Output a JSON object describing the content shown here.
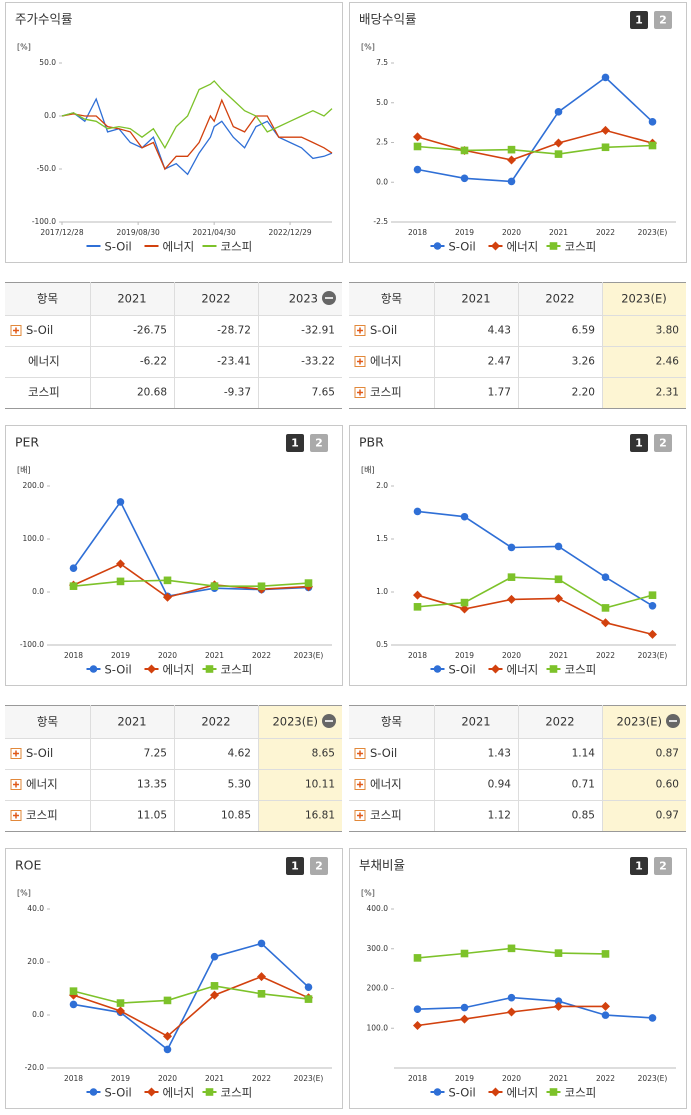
{
  "chart_data": [
    {
      "type": "line",
      "title": "주가수익률",
      "unit_label": "[%]",
      "x": [
        "2017/12/28",
        "2018/03/30",
        "2018/06/29",
        "2018/09/28",
        "2018/12/28",
        "2019/03/29",
        "2019/06/28",
        "2019/09/30",
        "2019/12/30",
        "2020/03/31",
        "2020/06/30",
        "2020/09/29",
        "2020/12/30",
        "2021/03/31",
        "2021/04/30",
        "2021/06/30",
        "2021/09/30",
        "2021/12/30",
        "2022/03/31",
        "2022/06/30",
        "2022/09/30",
        "2022/12/29",
        "2023/03/31",
        "2023/06/30",
        "2023/09/27",
        "2023/11/30"
      ],
      "xlim": [
        "2017/12/28",
        "2023/11/30"
      ],
      "xticks": [
        "2017/12/28",
        "2019/08/30",
        "2021/04/30",
        "2022/12/29"
      ],
      "ylim": [
        -100,
        50
      ],
      "yticks": [
        {
          "value": 50,
          "label": "50.0"
        },
        {
          "value": 0,
          "label": "0.0"
        },
        {
          "value": -50,
          "label": "-50.0"
        },
        {
          "value": -100,
          "label": "-100.0"
        }
      ],
      "series": [
        {
          "name": "S-Oil",
          "color": "#2f6fd6",
          "values": [
            0,
            3,
            -5,
            16,
            -15,
            -12,
            -25,
            -30,
            -20,
            -50,
            -45,
            -55,
            -35,
            -20,
            -10,
            -5,
            -20,
            -30,
            -10,
            -5,
            -20,
            -25,
            -30,
            -40,
            -38,
            -35
          ]
        },
        {
          "name": "에너지",
          "color": "#d2410e",
          "values": [
            0,
            2,
            0,
            0,
            -10,
            -12,
            -15,
            -30,
            -25,
            -50,
            -38,
            -38,
            -25,
            0,
            -5,
            15,
            -10,
            -15,
            0,
            0,
            -20,
            -20,
            -20,
            -25,
            -30,
            -35
          ]
        },
        {
          "name": "코스피",
          "color": "#7dc22a",
          "values": [
            0,
            3,
            -3,
            -5,
            -12,
            -10,
            -12,
            -20,
            -12,
            -30,
            -10,
            0,
            25,
            30,
            33,
            25,
            15,
            5,
            0,
            -15,
            -10,
            -5,
            0,
            5,
            0,
            7
          ]
        }
      ]
    },
    {
      "type": "line",
      "title": "배당수익률",
      "pages": [
        "1",
        "2"
      ],
      "unit_label": "[%]",
      "categories": [
        "2018",
        "2019",
        "2020",
        "2021",
        "2022",
        "2023(E)"
      ],
      "ylim": [
        -2.5,
        7.5
      ],
      "yticks": [
        {
          "value": 7.5,
          "label": "7.5"
        },
        {
          "value": 5,
          "label": "5.0"
        },
        {
          "value": 2.5,
          "label": "2.5"
        },
        {
          "value": 0,
          "label": "0.0"
        },
        {
          "value": -2.5,
          "label": "-2.5"
        }
      ],
      "series": [
        {
          "name": "S-Oil",
          "color": "#2f6fd6",
          "values": [
            0.8,
            0.25,
            0.05,
            4.43,
            6.59,
            3.8
          ]
        },
        {
          "name": "에너지",
          "color": "#d2410e",
          "values": [
            2.85,
            2.0,
            1.4,
            2.47,
            3.26,
            2.46
          ]
        },
        {
          "name": "코스피",
          "color": "#7dc22a",
          "values": [
            2.25,
            2.0,
            2.05,
            1.77,
            2.2,
            2.31
          ]
        }
      ]
    },
    {
      "type": "line",
      "title": "PER",
      "pages": [
        "1",
        "2"
      ],
      "unit_label": "[배]",
      "categories": [
        "2018",
        "2019",
        "2020",
        "2021",
        "2022",
        "2023(E)"
      ],
      "ylim": [
        -100,
        200
      ],
      "yticks": [
        {
          "value": 200,
          "label": "200.0"
        },
        {
          "value": 100,
          "label": "100.0"
        },
        {
          "value": 0,
          "label": "0.0"
        },
        {
          "value": -100,
          "label": "-100.0"
        }
      ],
      "series": [
        {
          "name": "S-Oil",
          "color": "#2f6fd6",
          "values": [
            45,
            170,
            -8,
            7.25,
            4.62,
            8.65
          ]
        },
        {
          "name": "에너지",
          "color": "#d2410e",
          "values": [
            13,
            53,
            -10,
            13.35,
            5.3,
            10.11
          ]
        },
        {
          "name": "코스피",
          "color": "#7dc22a",
          "values": [
            11,
            20,
            22,
            11.05,
            10.85,
            16.81
          ]
        }
      ]
    },
    {
      "type": "line",
      "title": "PBR",
      "pages": [
        "1",
        "2"
      ],
      "unit_label": "[배]",
      "categories": [
        "2018",
        "2019",
        "2020",
        "2021",
        "2022",
        "2023(E)"
      ],
      "ylim": [
        0.5,
        2.0
      ],
      "yticks": [
        {
          "value": 2,
          "label": "2.0"
        },
        {
          "value": 1.5,
          "label": "1.5"
        },
        {
          "value": 1,
          "label": "1.0"
        },
        0.5
      ],
      "series": [
        {
          "name": "S-Oil",
          "color": "#2f6fd6",
          "values": [
            1.76,
            1.71,
            1.42,
            1.43,
            1.14,
            0.87
          ]
        },
        {
          "name": "에너지",
          "color": "#d2410e",
          "values": [
            0.97,
            0.84,
            0.93,
            0.94,
            0.71,
            0.6
          ]
        },
        {
          "name": "코스피",
          "color": "#7dc22a",
          "values": [
            0.86,
            0.9,
            1.14,
            1.12,
            0.85,
            0.97
          ]
        }
      ]
    },
    {
      "type": "line",
      "title": "ROE",
      "pages": [
        "1",
        "2"
      ],
      "unit_label": "[%]",
      "categories": [
        "2018",
        "2019",
        "2020",
        "2021",
        "2022",
        "2023(E)"
      ],
      "ylim": [
        -20,
        40
      ],
      "yticks": [
        {
          "value": 40,
          "label": "40.0"
        },
        {
          "value": 20,
          "label": "20.0"
        },
        {
          "value": 0,
          "label": "0.0"
        },
        {
          "value": -20,
          "label": "-20.0"
        }
      ],
      "series": [
        {
          "name": "S-Oil",
          "color": "#2f6fd6",
          "values": [
            4,
            1,
            -13,
            22,
            27,
            10.5
          ]
        },
        {
          "name": "에너지",
          "color": "#d2410e",
          "values": [
            7.5,
            1.5,
            -8,
            7.5,
            14.5,
            6.5
          ]
        },
        {
          "name": "코스피",
          "color": "#7dc22a",
          "values": [
            9,
            4.5,
            5.5,
            11,
            8,
            6
          ]
        }
      ]
    },
    {
      "type": "line",
      "title": "부채비율",
      "pages": [
        "1",
        "2"
      ],
      "unit_label": "[%]",
      "categories": [
        "2018",
        "2019",
        "2020",
        "2021",
        "2022",
        "2023(E)"
      ],
      "ylim": [
        0,
        400
      ],
      "yticks": [
        {
          "value": 400,
          "label": "400.0"
        },
        {
          "value": 300,
          "label": "300.0"
        },
        {
          "value": 200,
          "label": "200.0"
        },
        {
          "value": 100,
          "label": "100.0"
        }
      ],
      "series": [
        {
          "name": "S-Oil",
          "color": "#2f6fd6",
          "values": [
            148,
            152,
            177,
            168,
            133,
            126
          ]
        },
        {
          "name": "에너지",
          "color": "#d2410e",
          "values": [
            107,
            123,
            141,
            155,
            155,
            null
          ]
        },
        {
          "name": "코스피",
          "color": "#7dc22a",
          "values": [
            277,
            288,
            301,
            289,
            287,
            null
          ]
        }
      ]
    }
  ],
  "tables": [
    {
      "header": [
        "항목",
        "2021",
        "2022",
        "2023"
      ],
      "rows": [
        [
          "S-Oil",
          "-26.75",
          "-28.72",
          "-32.91"
        ],
        [
          "에너지",
          "-6.22",
          "-23.41",
          "-33.22"
        ],
        [
          "코스피",
          "20.68",
          "-9.37",
          "7.65"
        ]
      ]
    },
    {
      "header": [
        "항목",
        "2021",
        "2022",
        "2023(E)"
      ],
      "rows": [
        [
          "S-Oil",
          "4.43",
          "6.59",
          "3.80"
        ],
        [
          "에너지",
          "2.47",
          "3.26",
          "2.46"
        ],
        [
          "코스피",
          "1.77",
          "2.20",
          "2.31"
        ]
      ]
    },
    {
      "header": [
        "항목",
        "2021",
        "2022",
        "2023(E)"
      ],
      "rows": [
        [
          "S-Oil",
          "7.25",
          "4.62",
          "8.65"
        ],
        [
          "에너지",
          "13.35",
          "5.30",
          "10.11"
        ],
        [
          "코스피",
          "11.05",
          "10.85",
          "16.81"
        ]
      ]
    },
    {
      "header": [
        "항목",
        "2021",
        "2022",
        "2023(E)"
      ],
      "rows": [
        [
          "S-Oil",
          "1.43",
          "1.14",
          "0.87"
        ],
        [
          "에너지",
          "0.94",
          "0.71",
          "0.60"
        ],
        [
          "코스피",
          "1.12",
          "0.85",
          "0.97"
        ]
      ]
    }
  ]
}
